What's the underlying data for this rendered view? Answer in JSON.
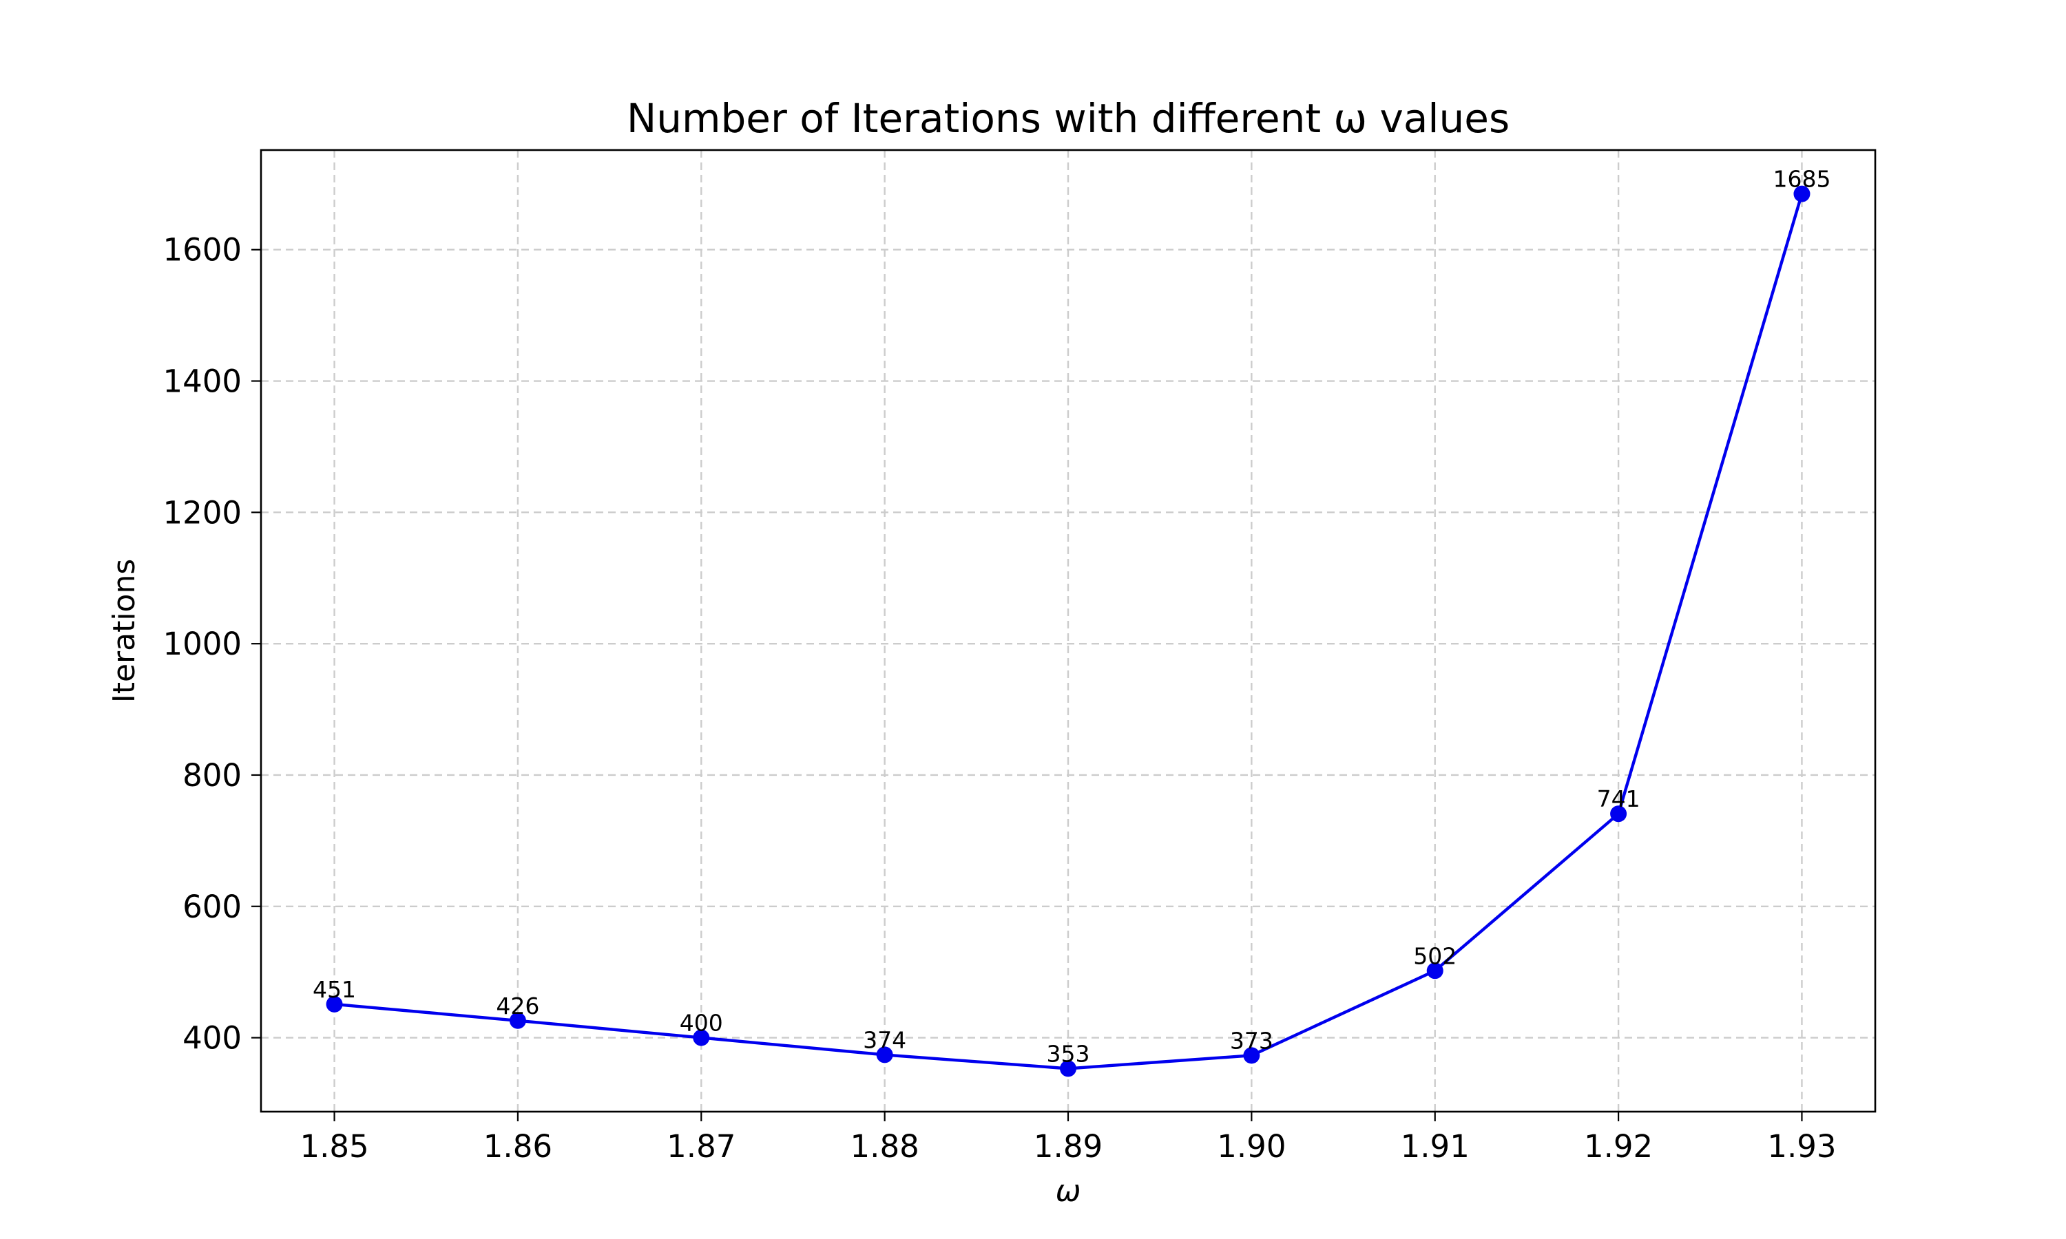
{
  "chart_data": {
    "type": "line",
    "title": "Number of Iterations with different ω values",
    "xlabel": "ω",
    "ylabel": "Iterations",
    "x": [
      1.85,
      1.86,
      1.87,
      1.88,
      1.89,
      1.9,
      1.91,
      1.92,
      1.93
    ],
    "x_tick_labels": [
      "1.85",
      "1.86",
      "1.87",
      "1.88",
      "1.89",
      "1.90",
      "1.91",
      "1.92",
      "1.93"
    ],
    "series": [
      {
        "values": [
          451,
          426,
          400,
          374,
          353,
          373,
          502,
          741,
          1685
        ],
        "color": "#0000ee",
        "marker": "circle"
      }
    ],
    "data_labels": [
      "451",
      "426",
      "400",
      "374",
      "353",
      "373",
      "502",
      "741",
      "1685"
    ],
    "y_ticks": [
      400,
      600,
      800,
      1000,
      1200,
      1400,
      1600
    ],
    "y_tick_labels": [
      "400",
      "600",
      "800",
      "1000",
      "1200",
      "1400",
      "1600"
    ],
    "xlim": [
      1.846,
      1.934
    ],
    "ylim": [
      287.4,
      1751.7
    ],
    "grid": true,
    "grid_style": "dashed"
  }
}
